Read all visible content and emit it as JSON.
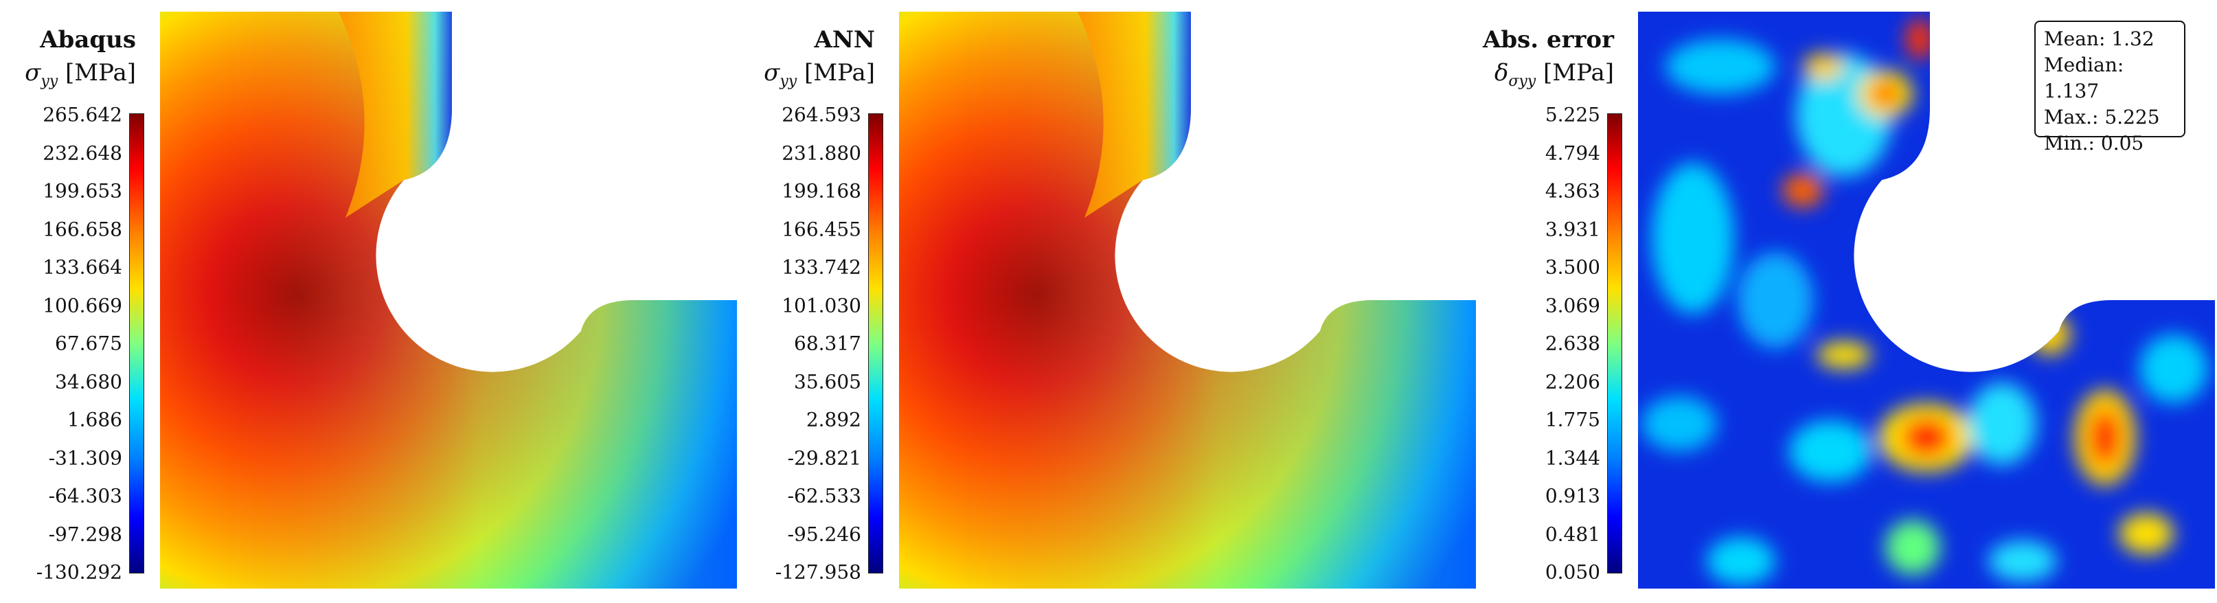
{
  "panels": [
    {
      "title": "Abaqus",
      "variable": {
        "symbol": "σ",
        "subscript": "yy",
        "unit": "[MPa]"
      },
      "ticks": [
        "265.642",
        "232.648",
        "199.653",
        "166.658",
        "133.664",
        "100.669",
        "67.675",
        "34.680",
        "1.686",
        "-31.309",
        "-64.303",
        "-97.298",
        "-130.292"
      ]
    },
    {
      "title": "ANN",
      "variable": {
        "symbol": "σ",
        "subscript": "yy",
        "unit": "[MPa]"
      },
      "ticks": [
        "264.593",
        "231.880",
        "199.168",
        "166.455",
        "133.742",
        "101.030",
        "68.317",
        "35.605",
        "2.892",
        "-29.821",
        "-62.533",
        "-95.246",
        "-127.958"
      ]
    },
    {
      "title": "Abs. error",
      "variable": {
        "symbol": "δ",
        "subscript": "σyy",
        "unit": "[MPa]"
      },
      "ticks": [
        "5.225",
        "4.794",
        "4.363",
        "3.931",
        "3.500",
        "3.069",
        "2.638",
        "2.206",
        "1.775",
        "1.344",
        "0.913",
        "0.481",
        "0.050"
      ]
    }
  ],
  "stats": {
    "mean": "Mean: 1.32",
    "median": "Median: 1.137",
    "max": "Max.: 5.225",
    "min": "Min.: 0.05"
  },
  "colormap": [
    "#00007f",
    "#0000ff",
    "#0080ff",
    "#00e0ff",
    "#80ff80",
    "#ffe000",
    "#ff8000",
    "#ff0000",
    "#7f0000"
  ]
}
